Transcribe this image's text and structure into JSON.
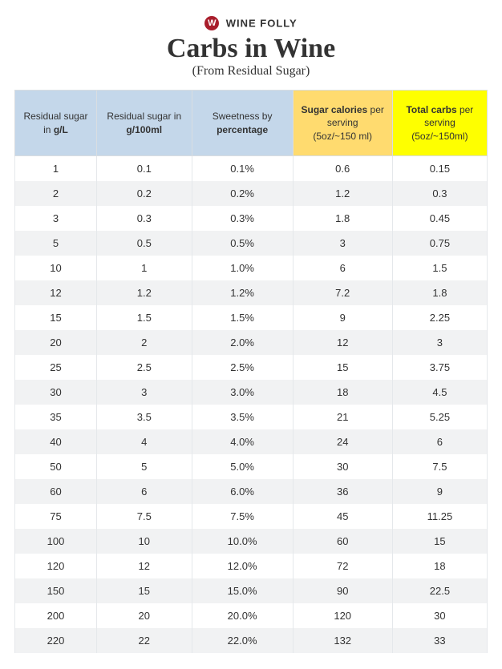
{
  "brand": {
    "logo_letter": "W",
    "name": "WINE FOLLY"
  },
  "title": "Carbs in Wine",
  "subtitle": "(From Residual Sugar)",
  "table": {
    "header_colors": {
      "blue": "#c4d7ea",
      "yellow_soft": "#ffdb6f",
      "yellow_bright": "#feff00"
    },
    "columns": [
      {
        "pre": "Residual sugar in ",
        "bold": "g/L",
        "post": "",
        "bg": "blue"
      },
      {
        "pre": "Residual sugar in ",
        "bold": "g/100ml",
        "post": "",
        "bg": "blue"
      },
      {
        "pre": "Sweetness by ",
        "bold": "percentage",
        "post": "",
        "bg": "blue"
      },
      {
        "bold_first": "Sugar calories",
        "rest": " per serving",
        "sub": "(5oz/~150 ml)",
        "bg": "yellow_soft"
      },
      {
        "bold_first": "Total carbs",
        "rest": " per serving",
        "sub": "(5oz/~150ml)",
        "bg": "yellow_bright"
      }
    ],
    "rows": [
      [
        "1",
        "0.1",
        "0.1%",
        "0.6",
        "0.15"
      ],
      [
        "2",
        "0.2",
        "0.2%",
        "1.2",
        "0.3"
      ],
      [
        "3",
        "0.3",
        "0.3%",
        "1.8",
        "0.45"
      ],
      [
        "5",
        "0.5",
        "0.5%",
        "3",
        "0.75"
      ],
      [
        "10",
        "1",
        "1.0%",
        "6",
        "1.5"
      ],
      [
        "12",
        "1.2",
        "1.2%",
        "7.2",
        "1.8"
      ],
      [
        "15",
        "1.5",
        "1.5%",
        "9",
        "2.25"
      ],
      [
        "20",
        "2",
        "2.0%",
        "12",
        "3"
      ],
      [
        "25",
        "2.5",
        "2.5%",
        "15",
        "3.75"
      ],
      [
        "30",
        "3",
        "3.0%",
        "18",
        "4.5"
      ],
      [
        "35",
        "3.5",
        "3.5%",
        "21",
        "5.25"
      ],
      [
        "40",
        "4",
        "4.0%",
        "24",
        "6"
      ],
      [
        "50",
        "5",
        "5.0%",
        "30",
        "7.5"
      ],
      [
        "60",
        "6",
        "6.0%",
        "36",
        "9"
      ],
      [
        "75",
        "7.5",
        "7.5%",
        "45",
        "11.25"
      ],
      [
        "100",
        "10",
        "10.0%",
        "60",
        "15"
      ],
      [
        "120",
        "12",
        "12.0%",
        "72",
        "18"
      ],
      [
        "150",
        "15",
        "15.0%",
        "90",
        "22.5"
      ],
      [
        "200",
        "20",
        "20.0%",
        "120",
        "30"
      ],
      [
        "220",
        "22",
        "22.0%",
        "132",
        "33"
      ]
    ]
  }
}
